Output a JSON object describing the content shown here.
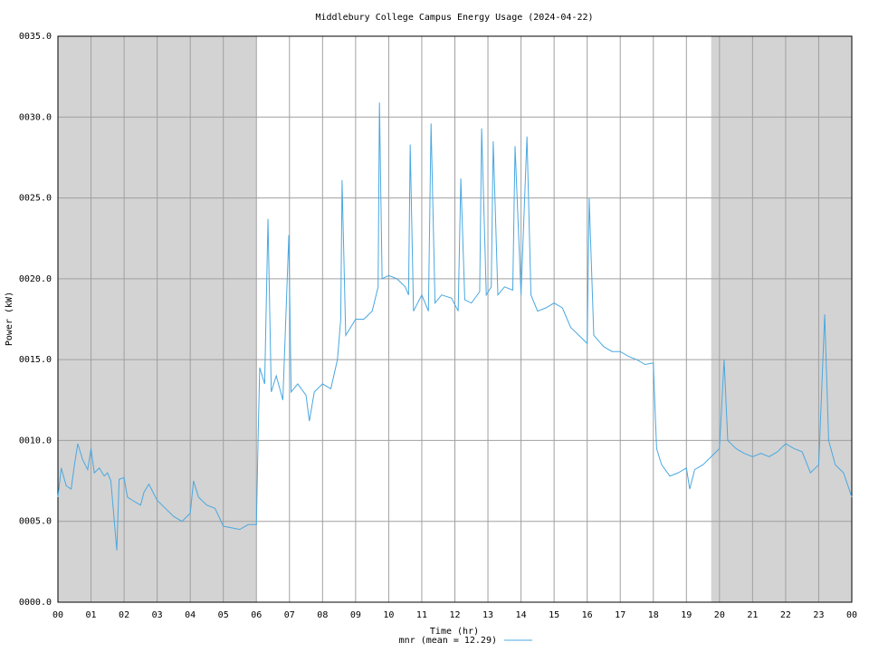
{
  "chart_data": {
    "type": "line",
    "title": "Middlebury College Campus Energy Usage (2024-04-22)",
    "x_label": "Time (hr)",
    "y_label": "Power (kW)",
    "xlim": [
      0,
      24
    ],
    "ylim": [
      0,
      35
    ],
    "xticks": [
      {
        "value": 0,
        "label": "00"
      },
      {
        "value": 1,
        "label": "01"
      },
      {
        "value": 2,
        "label": "02"
      },
      {
        "value": 3,
        "label": "03"
      },
      {
        "value": 4,
        "label": "04"
      },
      {
        "value": 5,
        "label": "05"
      },
      {
        "value": 6,
        "label": "06"
      },
      {
        "value": 7,
        "label": "07"
      },
      {
        "value": 8,
        "label": "08"
      },
      {
        "value": 9,
        "label": "09"
      },
      {
        "value": 10,
        "label": "10"
      },
      {
        "value": 11,
        "label": "11"
      },
      {
        "value": 12,
        "label": "12"
      },
      {
        "value": 13,
        "label": "13"
      },
      {
        "value": 14,
        "label": "14"
      },
      {
        "value": 15,
        "label": "15"
      },
      {
        "value": 16,
        "label": "16"
      },
      {
        "value": 17,
        "label": "17"
      },
      {
        "value": 18,
        "label": "18"
      },
      {
        "value": 19,
        "label": "19"
      },
      {
        "value": 20,
        "label": "20"
      },
      {
        "value": 21,
        "label": "21"
      },
      {
        "value": 22,
        "label": "22"
      },
      {
        "value": 23,
        "label": "23"
      },
      {
        "value": 24,
        "label": "00"
      }
    ],
    "yticks": [
      {
        "value": 0,
        "label": "0000.0"
      },
      {
        "value": 5,
        "label": "0005.0"
      },
      {
        "value": 10,
        "label": "0010.0"
      },
      {
        "value": 15,
        "label": "0015.0"
      },
      {
        "value": 20,
        "label": "0020.0"
      },
      {
        "value": 25,
        "label": "0025.0"
      },
      {
        "value": 30,
        "label": "0030.0"
      },
      {
        "value": 35,
        "label": "0035.0"
      }
    ],
    "grid": true,
    "shaded_x_ranges": [
      [
        0,
        6
      ],
      [
        19.75,
        24
      ]
    ],
    "shade_color": "#d3d3d3",
    "x": [
      0,
      0.1,
      0.25,
      0.4,
      0.5,
      0.6,
      0.75,
      0.9,
      1.0,
      1.1,
      1.25,
      1.4,
      1.5,
      1.6,
      1.78,
      1.85,
      2.0,
      2.1,
      2.25,
      2.5,
      2.6,
      2.75,
      3.0,
      3.25,
      3.5,
      3.75,
      4.0,
      4.1,
      4.25,
      4.5,
      4.75,
      5.0,
      5.25,
      5.5,
      5.75,
      6.0,
      6.05,
      6.1,
      6.25,
      6.35,
      6.45,
      6.6,
      6.8,
      6.98,
      7.05,
      7.25,
      7.5,
      7.6,
      7.75,
      8.0,
      8.25,
      8.45,
      8.55,
      8.59,
      8.7,
      9.0,
      9.25,
      9.5,
      9.68,
      9.72,
      9.8,
      10.0,
      10.25,
      10.5,
      10.6,
      10.65,
      10.75,
      11.0,
      11.2,
      11.28,
      11.4,
      11.6,
      11.9,
      12.1,
      12.18,
      12.3,
      12.5,
      12.75,
      12.81,
      12.95,
      13.1,
      13.16,
      13.3,
      13.5,
      13.75,
      13.82,
      14.0,
      14.18,
      14.3,
      14.5,
      14.75,
      15.0,
      15.25,
      15.5,
      15.75,
      16.0,
      16.06,
      16.2,
      16.5,
      16.75,
      17.0,
      17.25,
      17.5,
      17.75,
      18.0,
      18.05,
      18.1,
      18.25,
      18.5,
      18.75,
      19.0,
      19.1,
      19.25,
      19.5,
      19.75,
      20.0,
      20.14,
      20.25,
      20.5,
      20.75,
      21.0,
      21.25,
      21.5,
      21.75,
      22.0,
      22.25,
      22.5,
      22.75,
      23.0,
      23.18,
      23.3,
      23.5,
      23.75,
      24.0
    ],
    "series": [
      {
        "name": "mnr (mean = 12.29)",
        "color": "#4aa8e0",
        "values": [
          6.5,
          8.3,
          7.2,
          7.0,
          8.5,
          9.8,
          8.8,
          8.2,
          9.5,
          8.0,
          8.3,
          7.8,
          8.0,
          7.5,
          3.2,
          7.6,
          7.7,
          6.5,
          6.3,
          6.0,
          6.8,
          7.3,
          6.3,
          5.8,
          5.3,
          5.0,
          5.5,
          7.5,
          6.5,
          6.0,
          5.8,
          4.7,
          4.6,
          4.5,
          4.8,
          4.8,
          10.0,
          14.5,
          13.5,
          23.7,
          13.0,
          14.0,
          12.5,
          22.7,
          13.0,
          13.5,
          12.8,
          11.2,
          13.0,
          13.5,
          13.2,
          15.0,
          17.5,
          26.1,
          16.5,
          17.5,
          17.5,
          18.0,
          19.5,
          30.9,
          20.0,
          20.2,
          20.0,
          19.5,
          19.0,
          28.3,
          18.0,
          19.0,
          18.0,
          29.6,
          18.5,
          19.0,
          18.8,
          18.0,
          26.2,
          18.7,
          18.5,
          19.2,
          29.3,
          19.0,
          19.5,
          28.5,
          19.0,
          19.5,
          19.3,
          28.2,
          19.0,
          28.8,
          19.0,
          18.0,
          18.2,
          18.5,
          18.2,
          17.0,
          16.5,
          16.0,
          25.0,
          16.5,
          15.8,
          15.5,
          15.5,
          15.2,
          15.0,
          14.7,
          14.8,
          12.0,
          9.5,
          8.5,
          7.8,
          8.0,
          8.3,
          7.0,
          8.2,
          8.5,
          9.0,
          9.5,
          15.0,
          10.0,
          9.5,
          9.2,
          9.0,
          9.2,
          9.0,
          9.3,
          9.8,
          9.5,
          9.3,
          8.0,
          8.5,
          17.8,
          10.0,
          8.5,
          8.0,
          6.5
        ]
      }
    ]
  }
}
